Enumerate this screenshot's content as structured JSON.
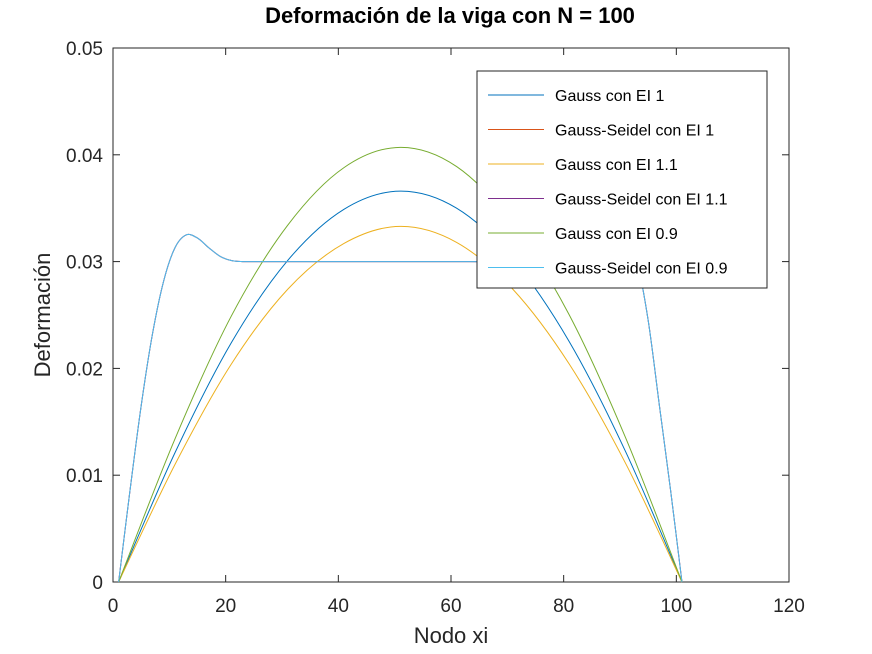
{
  "chart_data": {
    "type": "line",
    "title": "Deformación de la viga con N = 100",
    "xlabel": "Nodo xi",
    "ylabel": "Deformación",
    "xlim": [
      0,
      120
    ],
    "ylim": [
      0,
      0.05
    ],
    "xticks": [
      0,
      20,
      40,
      60,
      80,
      100,
      120
    ],
    "yticks": [
      0,
      0.01,
      0.02,
      0.03,
      0.04,
      0.05
    ],
    "xtick_labels": [
      "0",
      "20",
      "40",
      "60",
      "80",
      "100",
      "120"
    ],
    "ytick_labels": [
      "0",
      "0.01",
      "0.02",
      "0.03",
      "0.04",
      "0.05"
    ],
    "grid": false,
    "legend_position": "top-right",
    "series": [
      {
        "name": "Gauss con EI 1",
        "color": "#0072BD",
        "x": [
          1,
          11,
          21,
          31,
          41,
          51,
          61,
          71,
          81,
          91,
          101
        ],
        "values": [
          0,
          0.0121,
          0.0224,
          0.0301,
          0.0349,
          0.0366,
          0.035,
          0.0302,
          0.0225,
          0.0122,
          0
        ]
      },
      {
        "name": "Gauss-Seidel con EI 1",
        "color": "#D95319",
        "x": [
          1,
          3,
          5,
          7,
          9,
          11,
          13,
          15,
          17,
          19,
          21,
          23,
          25,
          27,
          30,
          35,
          40,
          50,
          60,
          70,
          80,
          85,
          88,
          91,
          93,
          95,
          97,
          99,
          101
        ],
        "values": [
          0,
          0.0085,
          0.0165,
          0.0232,
          0.0282,
          0.0313,
          0.0325,
          0.0322,
          0.0313,
          0.0305,
          0.0301,
          0.03,
          0.03,
          0.03,
          0.03,
          0.03,
          0.03,
          0.03,
          0.03,
          0.03,
          0.0302,
          0.0307,
          0.0315,
          0.032,
          0.03,
          0.0245,
          0.0165,
          0.0085,
          0
        ]
      },
      {
        "name": "Gauss con EI 1.1",
        "color": "#EDB120",
        "x": [
          1,
          11,
          21,
          31,
          41,
          51,
          61,
          71,
          81,
          91,
          101
        ],
        "values": [
          0,
          0.011,
          0.0204,
          0.0274,
          0.0317,
          0.0333,
          0.0318,
          0.0274,
          0.0204,
          0.0111,
          0
        ]
      },
      {
        "name": "Gauss-Seidel con EI 1.1",
        "color": "#7E2F8E",
        "x": [
          1,
          3,
          5,
          7,
          9,
          11,
          13,
          15,
          17,
          19,
          21,
          23,
          25,
          27,
          30,
          35,
          40,
          50,
          60,
          70,
          80,
          85,
          88,
          91,
          93,
          95,
          97,
          99,
          101
        ],
        "values": [
          0,
          0.0085,
          0.0165,
          0.0232,
          0.0282,
          0.0313,
          0.0325,
          0.0322,
          0.0313,
          0.0305,
          0.0301,
          0.03,
          0.03,
          0.03,
          0.03,
          0.03,
          0.03,
          0.03,
          0.03,
          0.03,
          0.0302,
          0.0307,
          0.0315,
          0.032,
          0.03,
          0.0245,
          0.0165,
          0.0085,
          0
        ]
      },
      {
        "name": "Gauss con EI 0.9",
        "color": "#77AC30",
        "x": [
          1,
          11,
          21,
          31,
          41,
          51,
          61,
          71,
          81,
          91,
          101
        ],
        "values": [
          0,
          0.0134,
          0.0249,
          0.0334,
          0.0388,
          0.0407,
          0.0389,
          0.0335,
          0.025,
          0.0135,
          0
        ]
      },
      {
        "name": "Gauss-Seidel con EI 0.9",
        "color": "#4DBEEE",
        "x": [
          1,
          3,
          5,
          7,
          9,
          11,
          13,
          15,
          17,
          19,
          21,
          23,
          25,
          27,
          30,
          35,
          40,
          50,
          60,
          70,
          80,
          85,
          88,
          91,
          93,
          95,
          97,
          99,
          101
        ],
        "values": [
          0,
          0.0085,
          0.0165,
          0.0232,
          0.0282,
          0.0313,
          0.0325,
          0.0322,
          0.0313,
          0.0305,
          0.0301,
          0.03,
          0.03,
          0.03,
          0.03,
          0.03,
          0.03,
          0.03,
          0.03,
          0.03,
          0.0302,
          0.0307,
          0.0315,
          0.032,
          0.03,
          0.0245,
          0.0165,
          0.0085,
          0
        ]
      }
    ]
  }
}
